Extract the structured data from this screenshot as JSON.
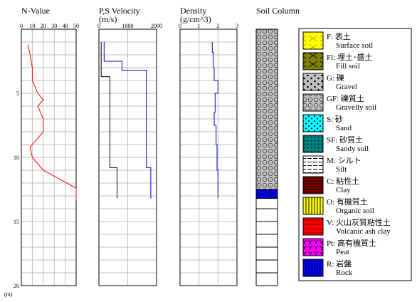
{
  "depth_axis": {
    "unit_label": "(m)",
    "range": [
      0,
      20
    ],
    "ticks": [
      5,
      10,
      15,
      20
    ]
  },
  "chart_data": [
    {
      "type": "line",
      "title": "N-Value",
      "xlim": [
        0,
        50
      ],
      "xticks": [
        0,
        10,
        20,
        30,
        40,
        50
      ],
      "ylim": [
        0,
        20
      ],
      "series": [
        {
          "color": "#ff0000",
          "points": [
            [
              6,
              1.2
            ],
            [
              8,
              2.0
            ],
            [
              10,
              3.0
            ],
            [
              10,
              4.0
            ],
            [
              15,
              5.0
            ],
            [
              20,
              5.5
            ],
            [
              15,
              6.0
            ],
            [
              20,
              7.0
            ],
            [
              20,
              8.0
            ],
            [
              12,
              8.8
            ],
            [
              8,
              9.2
            ],
            [
              10,
              10.0
            ],
            [
              20,
              11.0
            ],
            [
              35,
              11.7
            ],
            [
              50,
              12.4
            ],
            [
              50,
              13.3
            ]
          ]
        }
      ]
    },
    {
      "type": "line",
      "title": "P,S Velocity",
      "subtitle": "(m/s)",
      "xlim": [
        0,
        2000
      ],
      "xticks": [
        0,
        1000,
        2000
      ],
      "ylim": [
        0,
        20
      ],
      "series": [
        {
          "color": "#0000c0",
          "points": [
            [
              180,
              1.0
            ],
            [
              180,
              2.5
            ],
            [
              800,
              2.5
            ],
            [
              800,
              3.2
            ],
            [
              1650,
              3.2
            ],
            [
              1650,
              10.8
            ],
            [
              1800,
              10.8
            ],
            [
              1800,
              13.2
            ]
          ]
        },
        {
          "color": "#000000",
          "points": [
            [
              80,
              1.0
            ],
            [
              80,
              3.7
            ],
            [
              380,
              3.7
            ],
            [
              380,
              10.8
            ],
            [
              630,
              10.8
            ],
            [
              630,
              13.2
            ]
          ]
        }
      ]
    },
    {
      "type": "line",
      "title": "Density",
      "subtitle": "(g/cm^3)",
      "xlim": [
        0,
        3
      ],
      "xticks": [
        0,
        1,
        2,
        3
      ],
      "ylim": [
        0,
        20
      ],
      "series": [
        {
          "color": "#0000c0",
          "points": [
            [
              1.7,
              1.0
            ],
            [
              1.7,
              1.8
            ],
            [
              1.75,
              1.8
            ],
            [
              1.75,
              3.0
            ],
            [
              1.8,
              3.0
            ],
            [
              1.8,
              4.0
            ],
            [
              2.0,
              4.0
            ],
            [
              2.0,
              5.0
            ],
            [
              1.85,
              5.0
            ],
            [
              1.85,
              6.5
            ],
            [
              1.8,
              6.5
            ],
            [
              1.8,
              7.5
            ],
            [
              1.9,
              7.5
            ],
            [
              1.9,
              9.0
            ],
            [
              1.95,
              9.0
            ],
            [
              1.95,
              11.0
            ],
            [
              2.0,
              11.0
            ],
            [
              2.0,
              13.2
            ]
          ]
        }
      ]
    }
  ],
  "soil_column": {
    "title": "Soil Column",
    "total_depth": 20,
    "layers": [
      {
        "code": "GF",
        "top": 0,
        "bottom": 12.5
      },
      {
        "code": "R",
        "top": 12.5,
        "bottom": 13.2
      }
    ]
  },
  "legend": [
    {
      "code": "F: 表土",
      "en": "Surface soil",
      "pattern": "surface",
      "color": "#ffff00"
    },
    {
      "code": "Fl: 埋土･盛土",
      "en": "Fill soil",
      "pattern": "fill",
      "color": "#808000"
    },
    {
      "code": "G: 礫",
      "en": "Gravel",
      "pattern": "gravel",
      "color": "#c0c0c0"
    },
    {
      "code": "GF: 礫質土",
      "en": "Gravelly soil",
      "pattern": "gravelly",
      "color": "#c0c0c0"
    },
    {
      "code": "S: 砂",
      "en": "Sand",
      "pattern": "sand",
      "color": "#00ffff"
    },
    {
      "code": "SF: 砂質土",
      "en": "Sandy soil",
      "pattern": "sandy",
      "color": "#008080"
    },
    {
      "code": "M: シルト",
      "en": "Silt",
      "pattern": "silt",
      "color": "#ffffff"
    },
    {
      "code": "C: 粘性土",
      "en": "Clay",
      "pattern": "clay",
      "color": "#800000"
    },
    {
      "code": "O: 有機質土",
      "en": "Organic soil",
      "pattern": "organic",
      "color": "#ffff00"
    },
    {
      "code": "V: 火山灰質粘性土",
      "en": "Volcanic ash clay",
      "pattern": "volcanic",
      "color": "#ff0000"
    },
    {
      "code": "Pt: 高有機質土",
      "en": "Peat",
      "pattern": "peat",
      "color": "#ff00ff"
    },
    {
      "code": "R: 岩盤",
      "en": "Rock",
      "pattern": "rock",
      "color": "#0000ff"
    }
  ]
}
